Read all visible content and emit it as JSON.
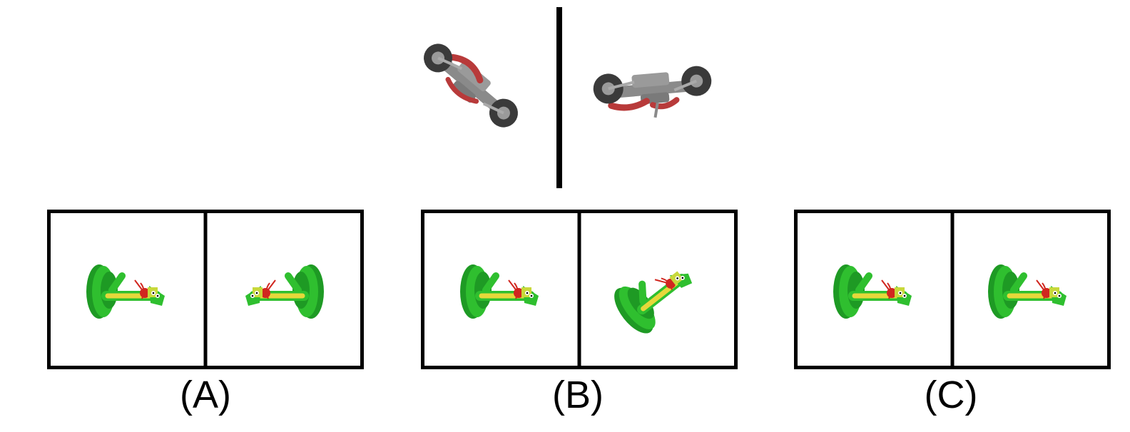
{
  "reference": {
    "left_image": "motorcycle-rotated-icon",
    "right_image": "motorcycle-level-icon"
  },
  "options": [
    {
      "label": "(A)",
      "left_image": "snake-toy-icon",
      "right_image": "snake-toy-mirrored-icon"
    },
    {
      "label": "(B)",
      "left_image": "snake-toy-icon",
      "right_image": "snake-toy-tilted-icon"
    },
    {
      "label": "(C)",
      "left_image": "snake-toy-icon",
      "right_image": "snake-toy-icon"
    }
  ],
  "colors": {
    "snake_green": "#2fbf2f",
    "snake_dark_green": "#1e9a24",
    "snake_yellow": "#e6d83a",
    "bow_red": "#d1261f",
    "moto_gray": "#8a8a8a",
    "moto_dark": "#3a3a3a",
    "moto_red": "#b83a3a"
  }
}
